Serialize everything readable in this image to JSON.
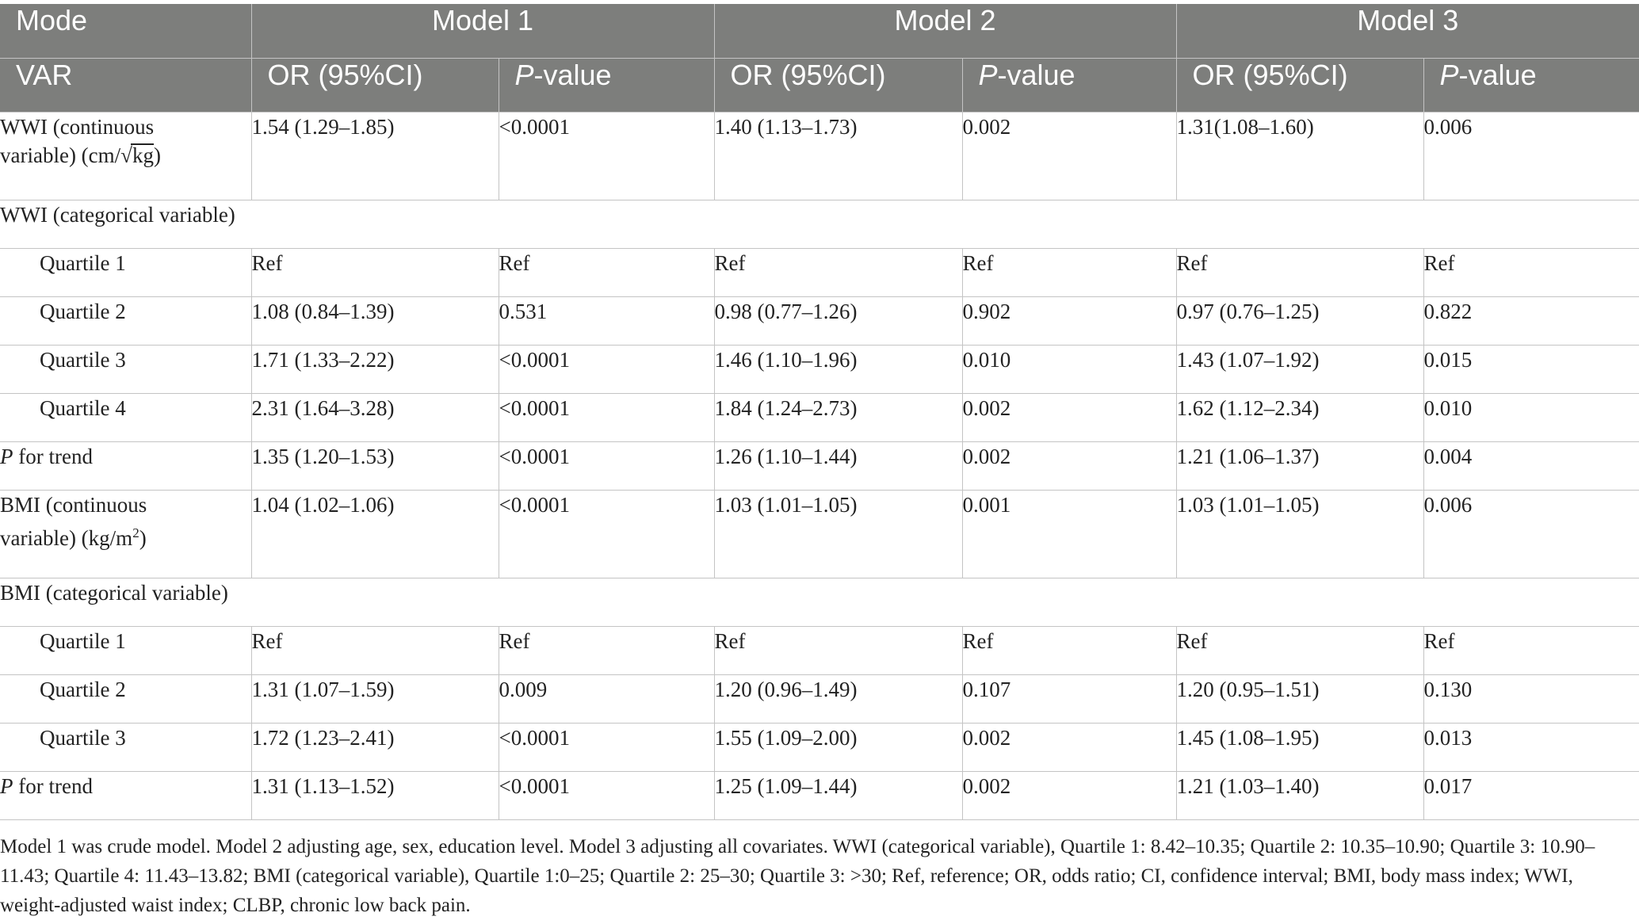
{
  "header": {
    "mode_label": "Mode",
    "var_label": "VAR",
    "models": [
      "Model 1",
      "Model 2",
      "Model 3"
    ],
    "or_label": "OR (95%CI)",
    "p_italic": "P",
    "p_suffix": "-value"
  },
  "rows": {
    "wwi_cont": {
      "label_line1": "WWI (continuous",
      "label_line2_pre": "variable) (cm/",
      "label_sqrt_sign": "√",
      "label_sqrt_arg": "kg",
      "label_line2_post": ")",
      "m1_or": "1.54 (1.29–1.85)",
      "m1_p": "<0.0001",
      "m2_or": "1.40 (1.13–1.73)",
      "m2_p": "0.002",
      "m3_or": "1.31(1.08–1.60)",
      "m3_p": "0.006"
    },
    "wwi_cat": {
      "label": "WWI (categorical variable)"
    },
    "wwi_q1": {
      "label": "Quartile 1",
      "m1_or": "Ref",
      "m1_p": "Ref",
      "m2_or": "Ref",
      "m2_p": "Ref",
      "m3_or": "Ref",
      "m3_p": "Ref"
    },
    "wwi_q2": {
      "label": "Quartile 2",
      "m1_or": "1.08 (0.84–1.39)",
      "m1_p": "0.531",
      "m2_or": "0.98 (0.77–1.26)",
      "m2_p": "0.902",
      "m3_or": "0.97 (0.76–1.25)",
      "m3_p": "0.822"
    },
    "wwi_q3": {
      "label": "Quartile 3",
      "m1_or": "1.71 (1.33–2.22)",
      "m1_p": "<0.0001",
      "m2_or": "1.46 (1.10–1.96)",
      "m2_p": "0.010",
      "m3_or": "1.43 (1.07–1.92)",
      "m3_p": "0.015"
    },
    "wwi_q4": {
      "label": "Quartile 4",
      "m1_or": "2.31 (1.64–3.28)",
      "m1_p": "<0.0001",
      "m2_or": "1.84 (1.24–2.73)",
      "m2_p": "0.002",
      "m3_or": "1.62 (1.12–2.34)",
      "m3_p": "0.010"
    },
    "wwi_trend": {
      "label_italic": "P",
      "label_rest": " for trend",
      "m1_or": "1.35 (1.20–1.53)",
      "m1_p": "<0.0001",
      "m2_or": "1.26 (1.10–1.44)",
      "m2_p": "0.002",
      "m3_or": "1.21 (1.06–1.37)",
      "m3_p": "0.004"
    },
    "bmi_cont": {
      "label_line1": "BMI (continuous",
      "label_line2_pre": "variable) (kg/m",
      "label_sup": "2",
      "label_line2_post": ")",
      "m1_or": "1.04 (1.02–1.06)",
      "m1_p": "<0.0001",
      "m2_or": "1.03 (1.01–1.05)",
      "m2_p": "0.001",
      "m3_or": "1.03 (1.01–1.05)",
      "m3_p": "0.006"
    },
    "bmi_cat": {
      "label": "BMI (categorical variable)"
    },
    "bmi_q1": {
      "label": "Quartile 1",
      "m1_or": "Ref",
      "m1_p": "Ref",
      "m2_or": "Ref",
      "m2_p": "Ref",
      "m3_or": "Ref",
      "m3_p": "Ref"
    },
    "bmi_q2": {
      "label": "Quartile 2",
      "m1_or": "1.31 (1.07–1.59)",
      "m1_p": "0.009",
      "m2_or": "1.20 (0.96–1.49)",
      "m2_p": "0.107",
      "m3_or": "1.20 (0.95–1.51)",
      "m3_p": "0.130"
    },
    "bmi_q3": {
      "label": "Quartile 3",
      "m1_or": "1.72 (1.23–2.41)",
      "m1_p": "<0.0001",
      "m2_or": "1.55 (1.09–2.00)",
      "m2_p": "0.002",
      "m3_or": "1.45 (1.08–1.95)",
      "m3_p": "0.013"
    },
    "bmi_trend": {
      "label_italic": "P",
      "label_rest": " for trend",
      "m1_or": "1.31 (1.13–1.52)",
      "m1_p": "<0.0001",
      "m2_or": "1.25 (1.09–1.44)",
      "m2_p": "0.002",
      "m3_or": "1.21 (1.03–1.40)",
      "m3_p": "0.017"
    }
  },
  "footnote": "Model 1 was crude model. Model 2 adjusting age, sex, education level. Model 3 adjusting all covariates. WWI (categorical variable), Quartile 1: 8.42–10.35; Quartile 2: 10.35–10.90; Quartile 3: 10.90–11.43; Quartile 4: 11.43–13.82; BMI (categorical variable), Quartile 1:0–25; Quartile 2: 25–30; Quartile 3: >30; Ref, reference; OR, odds ratio; CI, confidence interval; BMI, body mass index; WWI, weight-adjusted waist index; CLBP, chronic low back pain."
}
